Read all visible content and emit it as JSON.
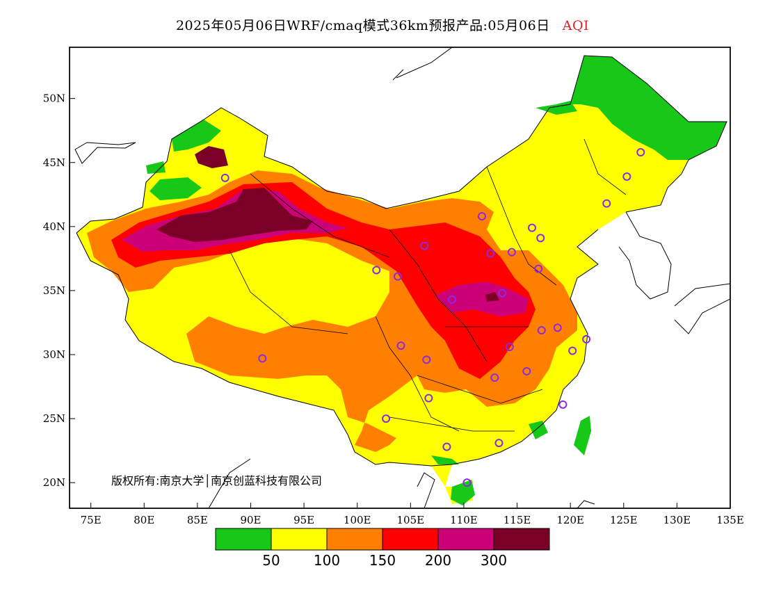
{
  "title": {
    "text": "2025年05月06日WRF/cmaq模式36km预报产品:05月06日",
    "variable": "AQI"
  },
  "copyright": "版权所有:南京大学│南京创蓝科技有限公司",
  "axes": {
    "x_ticks": [
      "75E",
      "80E",
      "85E",
      "90E",
      "95E",
      "100E",
      "105E",
      "110E",
      "115E",
      "120E",
      "125E",
      "130E",
      "135E"
    ],
    "y_ticks": [
      "50N",
      "45N",
      "40N",
      "35N",
      "30N",
      "25N",
      "20N"
    ],
    "lon_range": [
      73,
      135
    ],
    "lat_range": [
      18,
      54
    ]
  },
  "legend": {
    "colors": [
      "#18c818",
      "#ffff00",
      "#ff8000",
      "#ff0000",
      "#cc0077",
      "#7a0026"
    ],
    "labels": [
      "50",
      "100",
      "150",
      "200",
      "300"
    ]
  },
  "colors": {
    "good": "#18c818",
    "moderate": "#ffff00",
    "usg": "#ff8000",
    "unhealthy": "#ff0000",
    "very_unhealthy": "#cc0077",
    "hazardous": "#7a0026",
    "station_marker": "#8a2be2"
  },
  "stations_count": 31
}
